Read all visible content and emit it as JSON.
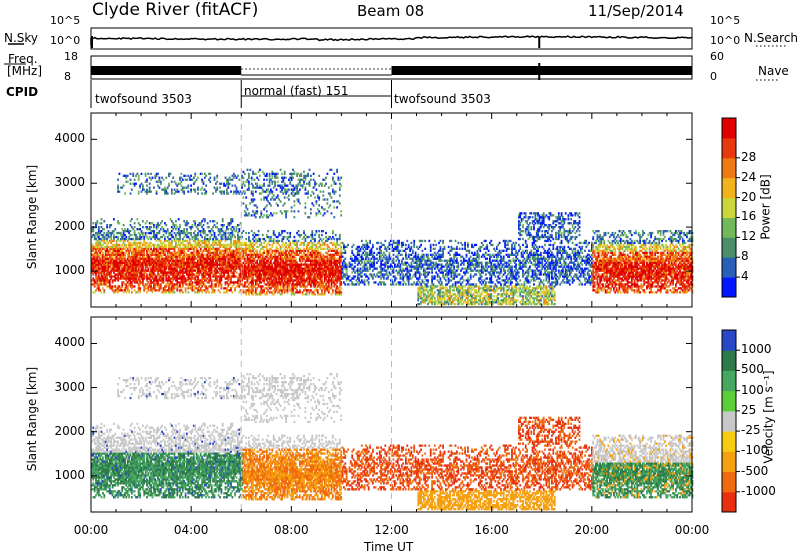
{
  "header": {
    "station": "Clyde River (fitACF)",
    "beam": "Beam 08",
    "date": "11/Sep/2014"
  },
  "top_panels": {
    "nsky_label": "N.Sky",
    "nsearch_label": "N.Search",
    "freq_label_line1": "Freq.",
    "freq_label_line2": "[MHz]",
    "nave_label": "Nave",
    "cpid_label": "CPID",
    "nsky_ticks": [
      "10^5",
      "10^0"
    ],
    "nsearch_ticks": [
      "10^5",
      "10^0"
    ],
    "freq_ticks": [
      "18",
      "8"
    ],
    "nave_ticks": [
      "60",
      "0"
    ],
    "cpid_segments": [
      {
        "start_h": 0,
        "end_h": 6,
        "label": "twofsound 3503"
      },
      {
        "start_h": 6,
        "end_h": 12,
        "label": "normal (fast) 151"
      },
      {
        "start_h": 12,
        "end_h": 24,
        "label": "twofsound 3503"
      }
    ]
  },
  "chart_data": [
    {
      "type": "heatmap",
      "name": "power",
      "ylabel": "Slant Range [km]",
      "ylim": [
        180,
        4600
      ],
      "yticks": [
        "1000",
        "2000",
        "3000",
        "4000"
      ],
      "xlim": [
        0,
        24
      ],
      "colorbar": {
        "label": "Power [dB]",
        "ticks": [
          "4",
          "8",
          "12",
          "16",
          "20",
          "24",
          "28"
        ],
        "colors": [
          "#0018ff",
          "#2a5fb8",
          "#4a8f6a",
          "#73b85a",
          "#c9d73a",
          "#f2b21c",
          "#f07a12",
          "#e8380e",
          "#e00000"
        ]
      },
      "regions": [
        {
          "t": [
            0.0,
            6.0
          ],
          "range_km": [
            500,
            2000
          ],
          "level": "high"
        },
        {
          "t": [
            6.0,
            9.5
          ],
          "range_km": [
            500,
            1700
          ],
          "level": "high"
        },
        {
          "t": [
            9.5,
            20.0
          ],
          "range_km": [
            700,
            2000
          ],
          "level": "low"
        },
        {
          "t": [
            13.0,
            18.5
          ],
          "range_km": [
            250,
            600
          ],
          "level": "medium"
        },
        {
          "t": [
            20.0,
            24.0
          ],
          "range_km": [
            500,
            1800
          ],
          "level": "high"
        }
      ]
    },
    {
      "type": "heatmap",
      "name": "velocity",
      "ylabel": "Slant Range [km]",
      "xlabel": "Time UT",
      "ylim": [
        180,
        4600
      ],
      "yticks": [
        "1000",
        "2000",
        "3000",
        "4000"
      ],
      "xlim": [
        0,
        24
      ],
      "xticks": [
        "00:00",
        "04:00",
        "08:00",
        "12:00",
        "16:00",
        "20:00",
        "00:00"
      ],
      "colorbar": {
        "label": "Velocity [m s⁻¹]",
        "ticks": [
          "1000",
          "500",
          "100",
          "25",
          "-25",
          "-100",
          "-500",
          "-1000"
        ],
        "colors": [
          "#2848c8",
          "#2e7a4a",
          "#46a860",
          "#5ccf38",
          "#c8c8c8",
          "#f5cc10",
          "#f5a010",
          "#f06a10",
          "#e83010"
        ]
      },
      "regions": [
        {
          "t": [
            0.0,
            6.0
          ],
          "range_km": [
            500,
            2000
          ],
          "velocity": "positive"
        },
        {
          "t": [
            6.0,
            10.0
          ],
          "range_km": [
            500,
            2000
          ],
          "velocity": "negative"
        },
        {
          "t": [
            10.0,
            16.5
          ],
          "range_km": [
            700,
            1600
          ],
          "velocity": "negative"
        },
        {
          "t": [
            20.0,
            24.0
          ],
          "range_km": [
            500,
            1800
          ],
          "velocity": "mixed"
        }
      ]
    }
  ]
}
